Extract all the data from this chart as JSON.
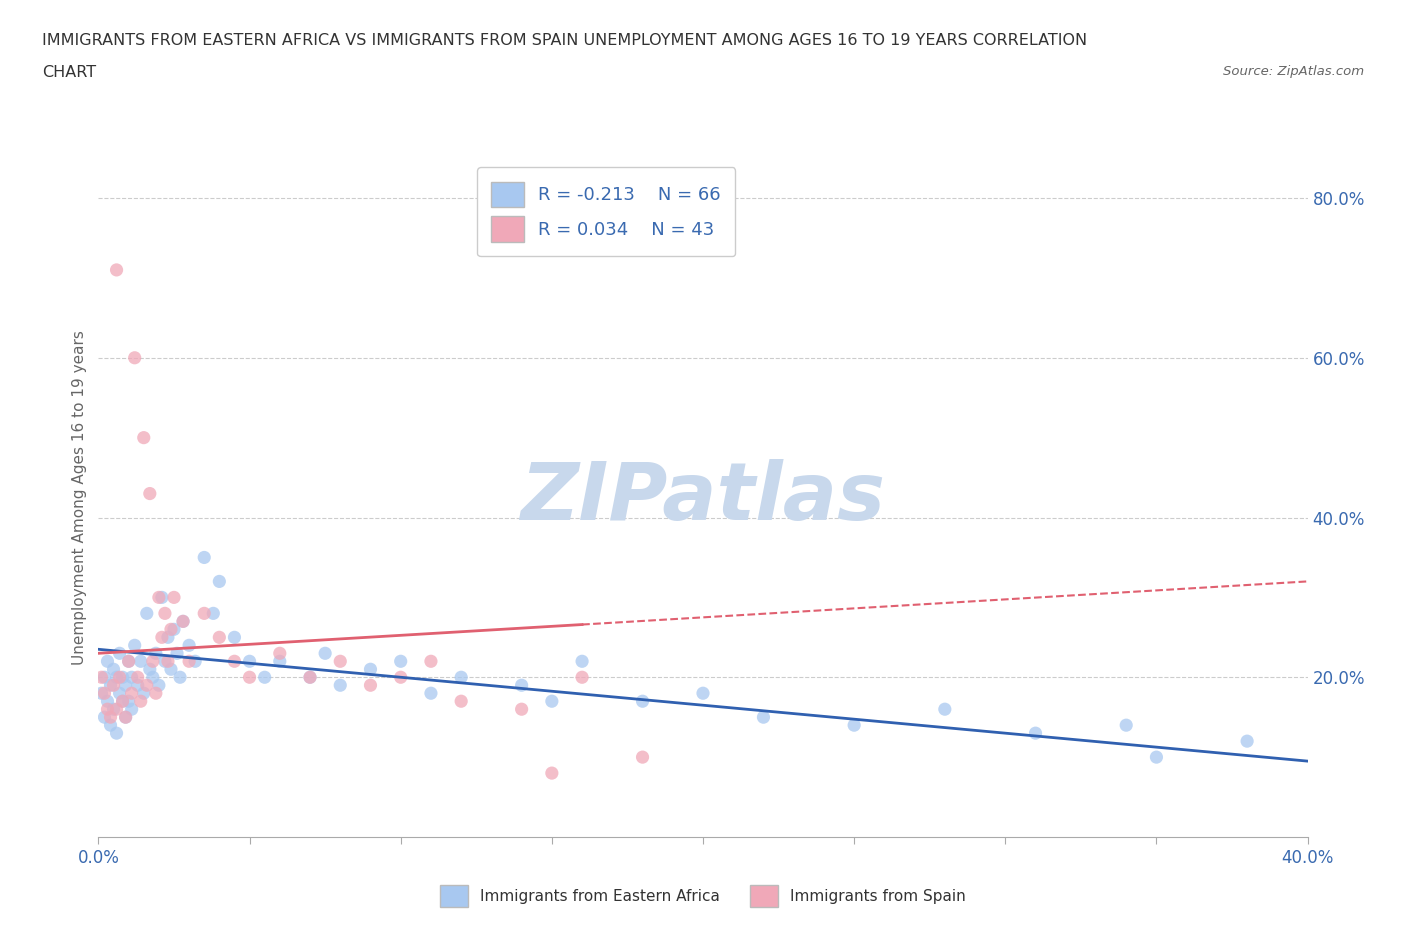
{
  "title_line1": "IMMIGRANTS FROM EASTERN AFRICA VS IMMIGRANTS FROM SPAIN UNEMPLOYMENT AMONG AGES 16 TO 19 YEARS CORRELATION",
  "title_line2": "CHART",
  "source_text": "Source: ZipAtlas.com",
  "ylabel": "Unemployment Among Ages 16 to 19 years",
  "xlim": [
    0.0,
    0.4
  ],
  "ylim": [
    0.0,
    0.85
  ],
  "xticks": [
    0.0,
    0.05,
    0.1,
    0.15,
    0.2,
    0.25,
    0.3,
    0.35,
    0.4
  ],
  "xtick_labels": [
    "0.0%",
    "",
    "",
    "",
    "",
    "",
    "",
    "",
    "40.0%"
  ],
  "yticks_right": [
    0.2,
    0.4,
    0.6,
    0.8
  ],
  "ytick_labels_right": [
    "20.0%",
    "40.0%",
    "60.0%",
    "80.0%"
  ],
  "grid_color": "#cccccc",
  "background_color": "#ffffff",
  "watermark": "ZIPatlas",
  "watermark_color": "#c8d8ec",
  "series1_color": "#a8c8f0",
  "series2_color": "#f0a8b8",
  "series1_label": "Immigrants from Eastern Africa",
  "series2_label": "Immigrants from Spain",
  "series1_R": "R = -0.213",
  "series1_N": "N = 66",
  "series2_R": "R = 0.034",
  "series2_N": "N = 43",
  "trend1_color": "#3060b0",
  "trend2_color": "#e06070",
  "trend1_start_y": 0.235,
  "trend1_end_y": 0.095,
  "trend2_solid_end_x": 0.16,
  "trend2_start_y": 0.23,
  "trend2_end_y": 0.32,
  "series1_x": [
    0.001,
    0.002,
    0.002,
    0.003,
    0.003,
    0.004,
    0.004,
    0.005,
    0.005,
    0.006,
    0.006,
    0.007,
    0.007,
    0.008,
    0.008,
    0.009,
    0.009,
    0.01,
    0.01,
    0.011,
    0.011,
    0.012,
    0.013,
    0.014,
    0.015,
    0.016,
    0.017,
    0.018,
    0.019,
    0.02,
    0.021,
    0.022,
    0.023,
    0.024,
    0.025,
    0.026,
    0.027,
    0.028,
    0.03,
    0.032,
    0.035,
    0.038,
    0.04,
    0.045,
    0.05,
    0.055,
    0.06,
    0.07,
    0.075,
    0.08,
    0.09,
    0.1,
    0.11,
    0.12,
    0.14,
    0.15,
    0.16,
    0.18,
    0.2,
    0.22,
    0.25,
    0.28,
    0.31,
    0.34,
    0.35,
    0.38
  ],
  "series1_y": [
    0.18,
    0.2,
    0.15,
    0.17,
    0.22,
    0.19,
    0.14,
    0.21,
    0.16,
    0.2,
    0.13,
    0.18,
    0.23,
    0.17,
    0.2,
    0.15,
    0.19,
    0.22,
    0.17,
    0.2,
    0.16,
    0.24,
    0.19,
    0.22,
    0.18,
    0.28,
    0.21,
    0.2,
    0.23,
    0.19,
    0.3,
    0.22,
    0.25,
    0.21,
    0.26,
    0.23,
    0.2,
    0.27,
    0.24,
    0.22,
    0.35,
    0.28,
    0.32,
    0.25,
    0.22,
    0.2,
    0.22,
    0.2,
    0.23,
    0.19,
    0.21,
    0.22,
    0.18,
    0.2,
    0.19,
    0.17,
    0.22,
    0.17,
    0.18,
    0.15,
    0.14,
    0.16,
    0.13,
    0.14,
    0.1,
    0.12
  ],
  "series2_x": [
    0.001,
    0.002,
    0.003,
    0.004,
    0.005,
    0.006,
    0.006,
    0.007,
    0.008,
    0.009,
    0.01,
    0.011,
    0.012,
    0.013,
    0.014,
    0.015,
    0.016,
    0.017,
    0.018,
    0.019,
    0.02,
    0.021,
    0.022,
    0.023,
    0.024,
    0.025,
    0.028,
    0.03,
    0.035,
    0.04,
    0.045,
    0.05,
    0.06,
    0.07,
    0.08,
    0.09,
    0.1,
    0.11,
    0.12,
    0.14,
    0.15,
    0.16,
    0.18
  ],
  "series2_y": [
    0.2,
    0.18,
    0.16,
    0.15,
    0.19,
    0.71,
    0.16,
    0.2,
    0.17,
    0.15,
    0.22,
    0.18,
    0.6,
    0.2,
    0.17,
    0.5,
    0.19,
    0.43,
    0.22,
    0.18,
    0.3,
    0.25,
    0.28,
    0.22,
    0.26,
    0.3,
    0.27,
    0.22,
    0.28,
    0.25,
    0.22,
    0.2,
    0.23,
    0.2,
    0.22,
    0.19,
    0.2,
    0.22,
    0.17,
    0.16,
    0.08,
    0.2,
    0.1
  ]
}
